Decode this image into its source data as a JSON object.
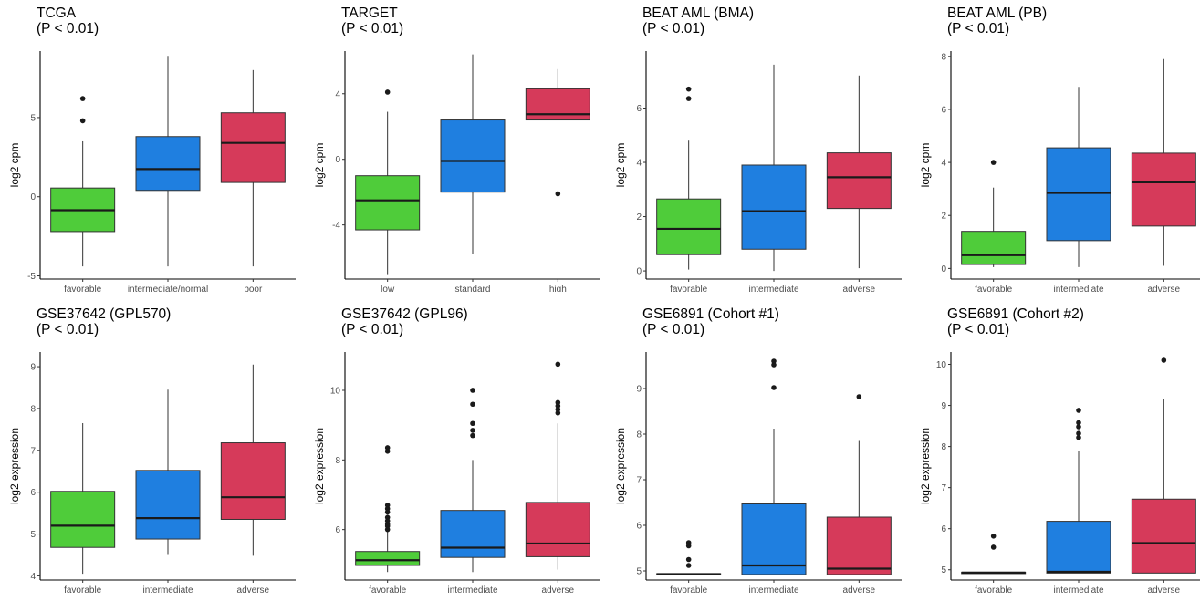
{
  "colors": {
    "favorable": "#4fcc3a",
    "low": "#4fcc3a",
    "intermediate": "#1f7fe0",
    "intermediate/normal": "#1f7fe0",
    "standard": "#1f7fe0",
    "poor": "#d63a5a",
    "adverse": "#d63a5a",
    "high": "#d63a5a",
    "text": "#000000",
    "tick": "#4d4d4d"
  },
  "chart_data": [
    {
      "type": "box",
      "title": "TCGA",
      "subtitle": "(P < 0.01)",
      "ylabel": "log2 cpm",
      "xlabel": "",
      "ylim": [
        -5.2,
        9.2
      ],
      "yticks": [
        -5,
        0,
        5
      ],
      "grid": false,
      "categories": [
        "favorable",
        "intermediate/normal",
        "poor"
      ],
      "boxes": [
        {
          "q1": -2.2,
          "median": -0.85,
          "q3": 0.55,
          "whisker_low": -4.4,
          "whisker_high": 3.5,
          "outliers": [
            4.8,
            6.2
          ]
        },
        {
          "q1": 0.4,
          "median": 1.75,
          "q3": 3.8,
          "whisker_low": -4.4,
          "whisker_high": 8.9,
          "outliers": []
        },
        {
          "q1": 0.9,
          "median": 3.4,
          "q3": 5.3,
          "whisker_low": -4.4,
          "whisker_high": 8.0,
          "outliers": []
        }
      ]
    },
    {
      "type": "box",
      "title": "TARGET",
      "subtitle": "(P < 0.01)",
      "ylabel": "log2 cpm",
      "xlabel": "",
      "ylim": [
        -7.3,
        6.6
      ],
      "yticks": [
        -4,
        0,
        4
      ],
      "yticklabels": [
        "-4",
        "0",
        "4"
      ],
      "grid": false,
      "categories": [
        "low",
        "standard",
        "high"
      ],
      "boxes": [
        {
          "q1": -4.3,
          "median": -2.5,
          "q3": -1.0,
          "whisker_low": -7.0,
          "whisker_high": 2.9,
          "outliers": [
            4.1
          ]
        },
        {
          "q1": -2.0,
          "median": -0.1,
          "q3": 2.4,
          "whisker_low": -5.8,
          "whisker_high": 6.4,
          "outliers": []
        },
        {
          "q1": 2.4,
          "median": 2.75,
          "q3": 4.3,
          "whisker_low": 2.4,
          "whisker_high": 5.5,
          "outliers": [
            -2.1
          ]
        }
      ]
    },
    {
      "type": "box",
      "title": "BEAT AML (BMA)",
      "subtitle": "(P < 0.01)",
      "ylabel": "log2 cpm",
      "xlabel": "",
      "ylim": [
        -0.3,
        8.1
      ],
      "yticks": [
        0,
        2,
        4,
        6
      ],
      "grid": false,
      "categories": [
        "favorable",
        "intermediate",
        "adverse"
      ],
      "boxes": [
        {
          "q1": 0.6,
          "median": 1.55,
          "q3": 2.65,
          "whisker_low": 0.05,
          "whisker_high": 4.8,
          "outliers": [
            6.35,
            6.7
          ]
        },
        {
          "q1": 0.8,
          "median": 2.2,
          "q3": 3.9,
          "whisker_low": 0.0,
          "whisker_high": 7.6,
          "outliers": []
        },
        {
          "q1": 2.3,
          "median": 3.45,
          "q3": 4.35,
          "whisker_low": 0.1,
          "whisker_high": 7.2,
          "outliers": []
        }
      ]
    },
    {
      "type": "box",
      "title": "BEAT AML (PB)",
      "subtitle": "(P < 0.01)",
      "ylabel": "log2 cpm",
      "xlabel": "",
      "ylim": [
        -0.4,
        8.2
      ],
      "yticks": [
        0,
        2,
        4,
        6,
        8
      ],
      "grid": false,
      "categories": [
        "favorable",
        "intermediate",
        "adverse"
      ],
      "boxes": [
        {
          "q1": 0.15,
          "median": 0.5,
          "q3": 1.4,
          "whisker_low": 0.05,
          "whisker_high": 3.05,
          "outliers": [
            4.0
          ]
        },
        {
          "q1": 1.05,
          "median": 2.85,
          "q3": 4.55,
          "whisker_low": 0.05,
          "whisker_high": 6.85,
          "outliers": []
        },
        {
          "q1": 1.6,
          "median": 3.25,
          "q3": 4.35,
          "whisker_low": 0.1,
          "whisker_high": 7.9,
          "outliers": []
        }
      ]
    },
    {
      "type": "box",
      "title": "GSE37642 (GPL570)",
      "subtitle": "(P < 0.01)",
      "ylabel": "log2 expression",
      "xlabel": "",
      "ylim": [
        3.9,
        9.35
      ],
      "yticks": [
        4,
        5,
        6,
        7,
        8,
        9
      ],
      "grid": false,
      "categories": [
        "favorable",
        "intermediate",
        "adverse"
      ],
      "boxes": [
        {
          "q1": 4.68,
          "median": 5.2,
          "q3": 6.02,
          "whisker_low": 4.05,
          "whisker_high": 7.65,
          "outliers": []
        },
        {
          "q1": 4.88,
          "median": 5.38,
          "q3": 6.52,
          "whisker_low": 4.5,
          "whisker_high": 8.45,
          "outliers": []
        },
        {
          "q1": 5.35,
          "median": 5.88,
          "q3": 7.18,
          "whisker_low": 4.48,
          "whisker_high": 9.05,
          "outliers": []
        }
      ]
    },
    {
      "type": "box",
      "title": "GSE37642 (GPL96)",
      "subtitle": "(P < 0.01)",
      "ylabel": "log2 expression",
      "xlabel": "",
      "ylim": [
        4.55,
        11.1
      ],
      "yticks": [
        6,
        8,
        10
      ],
      "grid": false,
      "categories": [
        "favorable",
        "intermediate",
        "adverse"
      ],
      "boxes": [
        {
          "q1": 4.97,
          "median": 5.12,
          "q3": 5.37,
          "whisker_low": 4.78,
          "whisker_high": 5.95,
          "outliers": [
            6.0,
            6.1,
            6.15,
            6.25,
            6.35,
            6.5,
            6.6,
            6.7,
            8.25,
            8.35
          ]
        },
        {
          "q1": 5.2,
          "median": 5.48,
          "q3": 6.55,
          "whisker_low": 4.78,
          "whisker_high": 8.0,
          "outliers": [
            8.7,
            8.85,
            9.05,
            9.6,
            10.0
          ]
        },
        {
          "q1": 5.22,
          "median": 5.6,
          "q3": 6.78,
          "whisker_low": 4.85,
          "whisker_high": 9.05,
          "outliers": [
            9.35,
            9.45,
            9.55,
            9.65,
            10.75
          ]
        }
      ]
    },
    {
      "type": "box",
      "title": "GSE6891 (Cohort #1)",
      "subtitle": "(P < 0.01)",
      "ylabel": "log2 expression",
      "xlabel": "",
      "ylim": [
        4.8,
        9.8
      ],
      "yticks": [
        5,
        6,
        7,
        8,
        9
      ],
      "grid": false,
      "categories": [
        "favorable",
        "intermediate",
        "adverse"
      ],
      "boxes": [
        {
          "q1": 4.92,
          "median": 4.93,
          "q3": 4.94,
          "whisker_low": 4.92,
          "whisker_high": 4.94,
          "outliers": [
            5.12,
            5.25,
            5.55,
            5.62
          ]
        },
        {
          "q1": 4.92,
          "median": 5.12,
          "q3": 6.47,
          "whisker_low": 4.92,
          "whisker_high": 8.12,
          "outliers": [
            9.02,
            9.52,
            9.6
          ]
        },
        {
          "q1": 4.92,
          "median": 5.05,
          "q3": 6.18,
          "whisker_low": 4.92,
          "whisker_high": 7.85,
          "outliers": [
            8.82
          ]
        }
      ]
    },
    {
      "type": "box",
      "title": "GSE6891 (Cohort #2)",
      "subtitle": "(P < 0.01)",
      "ylabel": "log2 expression",
      "xlabel": "",
      "ylim": [
        4.75,
        10.3
      ],
      "yticks": [
        5,
        6,
        7,
        8,
        9,
        10
      ],
      "grid": false,
      "categories": [
        "favorable",
        "intermediate",
        "adverse"
      ],
      "boxes": [
        {
          "q1": 4.92,
          "median": 4.93,
          "q3": 4.94,
          "whisker_low": 4.92,
          "whisker_high": 4.94,
          "outliers": [
            5.55,
            5.82
          ]
        },
        {
          "q1": 4.92,
          "median": 4.95,
          "q3": 6.18,
          "whisker_low": 4.92,
          "whisker_high": 7.88,
          "outliers": [
            8.22,
            8.32,
            8.48,
            8.58,
            8.88
          ]
        },
        {
          "q1": 4.92,
          "median": 5.65,
          "q3": 6.72,
          "whisker_low": 4.92,
          "whisker_high": 9.15,
          "outliers": [
            10.1
          ]
        }
      ]
    }
  ]
}
